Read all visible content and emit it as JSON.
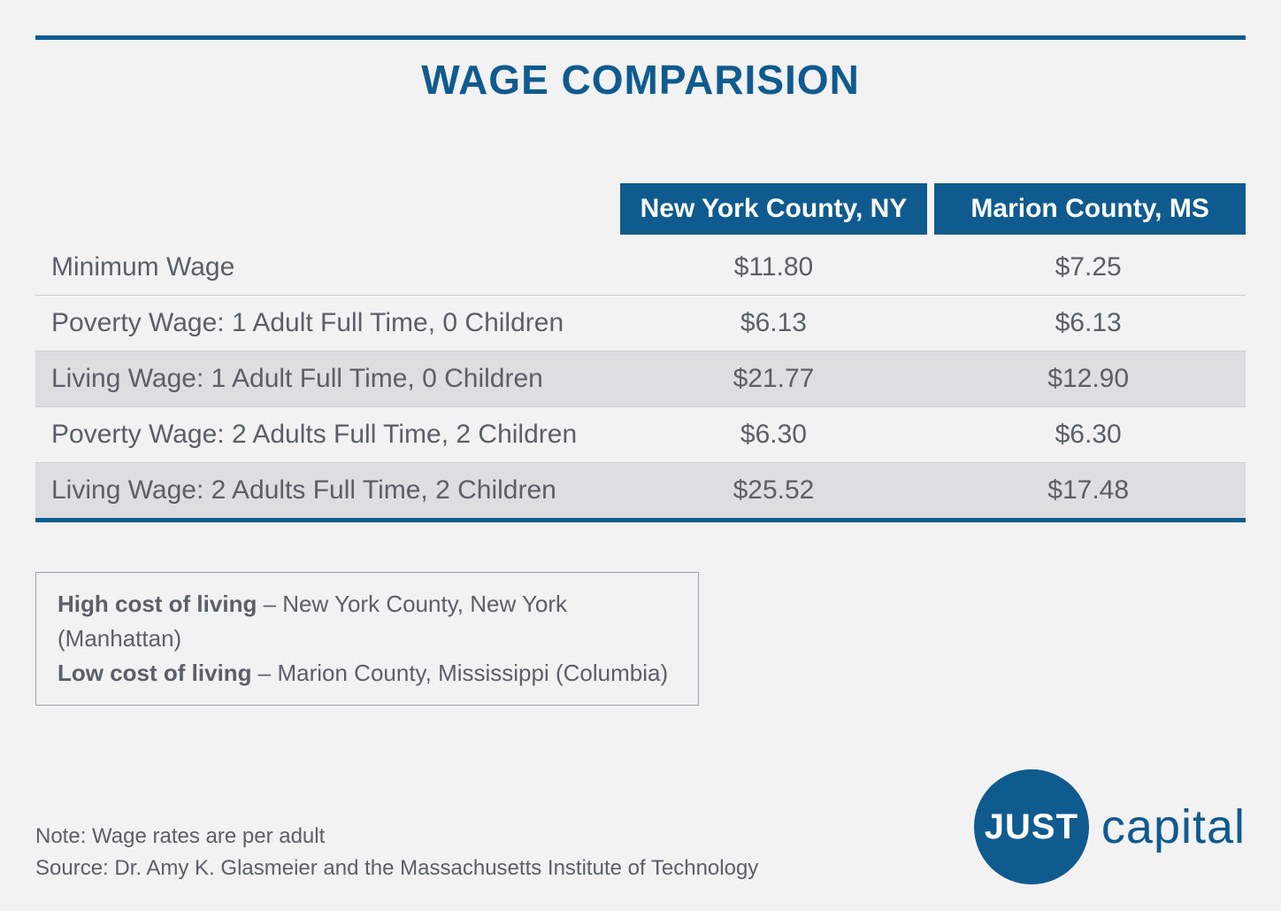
{
  "title": "WAGE COMPARISION",
  "table": {
    "type": "table",
    "header_bg": "#0f5a8f",
    "header_text_color": "#ffffff",
    "row_shade_color": "#dddedf",
    "border_color": "#cfcfcf",
    "bottom_rule_color": "#0f5a8f",
    "label_fontsize": 30,
    "columns": [
      "",
      "New York County, NY",
      "Marion County, MS"
    ],
    "rows": [
      {
        "label": "Minimum Wage",
        "ny": "$11.80",
        "ms": "$7.25",
        "shade": false
      },
      {
        "label": "Poverty Wage: 1 Adult Full Time, 0 Children",
        "ny": "$6.13",
        "ms": "$6.13",
        "shade": false
      },
      {
        "label": "Living Wage: 1 Adult Full Time, 0 Children",
        "ny": "$21.77",
        "ms": "$12.90",
        "shade": true
      },
      {
        "label": "Poverty Wage: 2 Adults Full Time, 2 Children",
        "ny": "$6.30",
        "ms": "$6.30",
        "shade": false
      },
      {
        "label": "Living Wage: 2 Adults Full Time, 2 Children",
        "ny": "$25.52",
        "ms": "$17.48",
        "shade": true
      }
    ]
  },
  "legend": {
    "high_label": "High cost of living",
    "high_desc": " – New York County, New York (Manhattan)",
    "low_label": "Low cost of living",
    "low_desc": " – Marion County, Mississippi (Columbia)"
  },
  "footnotes": {
    "note": "Note: Wage rates are per adult",
    "source": "Source: Dr. Amy K. Glasmeier and the Massachusetts Institute of Technology"
  },
  "logo": {
    "circle_text": "JUST",
    "word": "capital",
    "circle_color": "#0f5a8f",
    "word_color": "#0f5a8f"
  },
  "colors": {
    "brand_blue": "#0f5a8f",
    "text_gray": "#5a6066",
    "page_bg": "#f2f2f2"
  }
}
